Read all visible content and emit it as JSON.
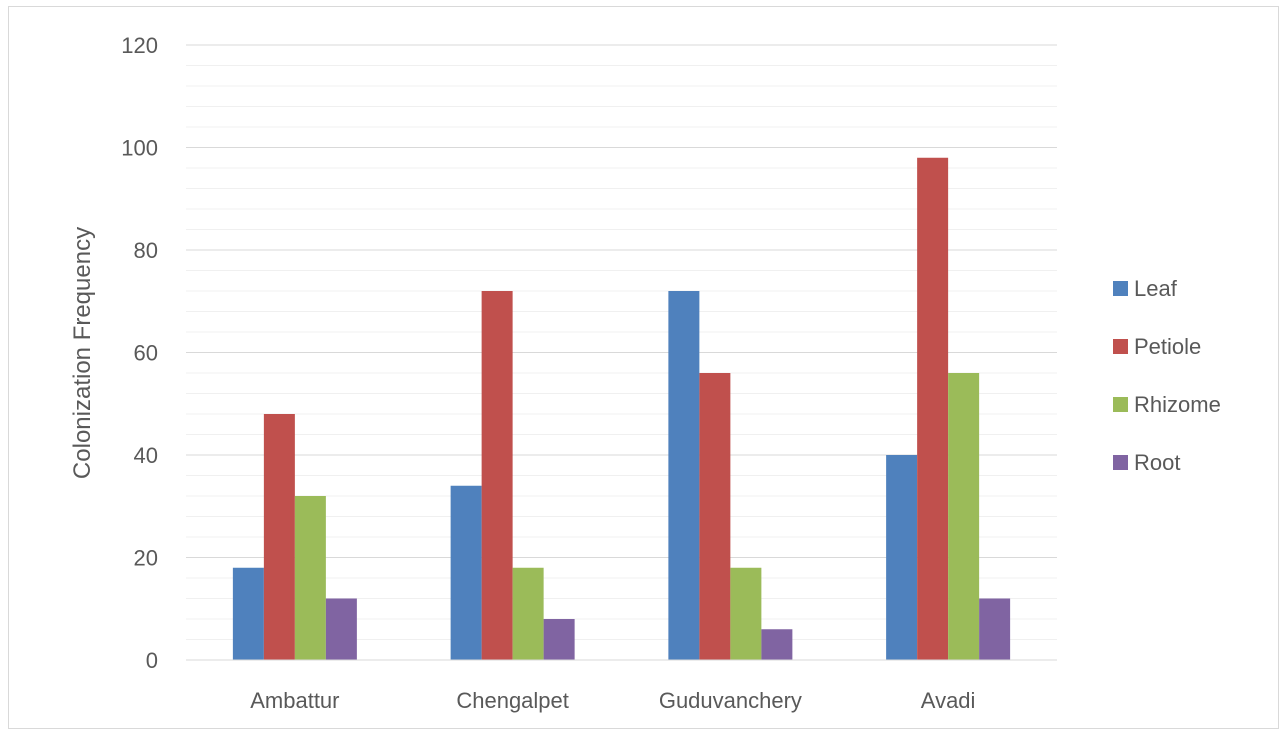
{
  "chart_data": {
    "type": "bar",
    "title": "",
    "xlabel": "",
    "ylabel": "Colonization Frequency",
    "categories": [
      "Ambattur",
      "Chengalpet",
      "Guduvanchery",
      "Avadi"
    ],
    "series": [
      {
        "name": "Leaf",
        "color": "#4f81bd",
        "values": [
          18,
          34,
          72,
          40
        ]
      },
      {
        "name": "Petiole",
        "color": "#c0504d",
        "values": [
          48,
          72,
          56,
          98
        ]
      },
      {
        "name": "Rhizome",
        "color": "#9bbb59",
        "values": [
          32,
          18,
          18,
          56
        ]
      },
      {
        "name": "Root",
        "color": "#8064a2",
        "values": [
          12,
          8,
          6,
          12
        ]
      }
    ],
    "ylim": [
      0,
      120
    ],
    "yticks": [
      0,
      20,
      40,
      60,
      80,
      100,
      120
    ],
    "minor_gridlines": true,
    "grid": true,
    "legend_position": "right"
  }
}
